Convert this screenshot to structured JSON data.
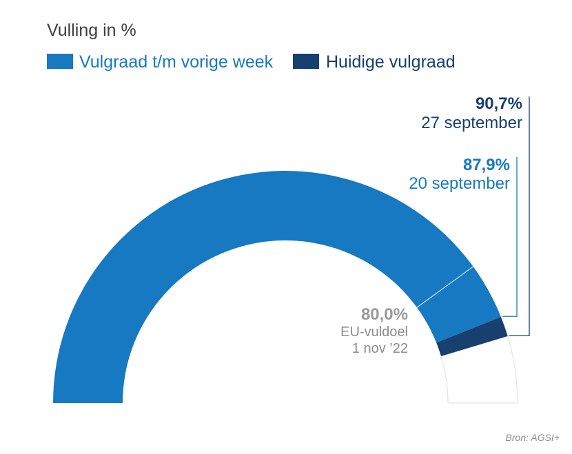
{
  "chart_data": {
    "type": "gauge",
    "title": "Vulling in %",
    "range": [
      0,
      100
    ],
    "legend": [
      {
        "label": "Vulgraad t/m vorige week",
        "color": "#1679c2"
      },
      {
        "label": "Huidige vulgraad",
        "color": "#173f70"
      }
    ],
    "series": [
      {
        "name": "Vulgraad t/m vorige week",
        "value": 87.9,
        "value_label": "87,9%",
        "date_label": "20 september",
        "color": "#1679c2"
      },
      {
        "name": "Huidige vulgraad",
        "value": 90.7,
        "value_label": "90,7%",
        "date_label": "27 september",
        "color": "#173f70"
      }
    ],
    "target": {
      "value": 80.0,
      "value_label": "80,0%",
      "line1": "EU-vuldoel",
      "line2": "1 nov ’22",
      "color": "#9a9a9a"
    },
    "remainder_color": "#e3e3e3"
  },
  "source": "Bron: AGSI+"
}
